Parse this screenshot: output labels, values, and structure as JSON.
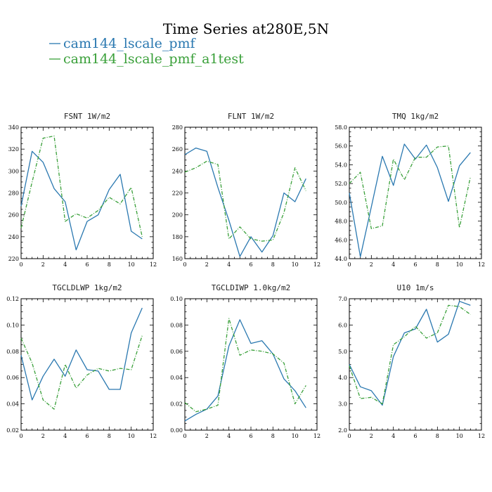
{
  "title": "Time Series at280E,5N",
  "legend": [
    {
      "label": "cam144_lscale_pmf",
      "color": "#2a78b0",
      "dash": "none"
    },
    {
      "label": "cam144_lscale_pmf_a1test",
      "color": "#3aa03a",
      "dash": "dashed"
    }
  ],
  "colors": {
    "series1": "#2a78b0",
    "series2": "#3aa03a"
  },
  "chart_data": [
    {
      "type": "line",
      "title": "FSNT  1W/m2",
      "x": [
        0,
        1,
        2,
        3,
        4,
        5,
        6,
        7,
        8,
        9,
        10,
        11
      ],
      "xlim": [
        0,
        12
      ],
      "xticks": [
        "0",
        "2",
        "4",
        "6",
        "8",
        "10",
        "12"
      ],
      "ylim": [
        220,
        340
      ],
      "yticks": [
        "220",
        "240",
        "260",
        "280",
        "300",
        "320",
        "340"
      ],
      "series": [
        {
          "name": "cam144_lscale_pmf",
          "values": [
            268,
            318,
            308,
            284,
            272,
            228,
            254,
            260,
            283,
            297,
            245,
            238
          ]
        },
        {
          "name": "cam144_lscale_pmf_a1test",
          "values": [
            248,
            290,
            330,
            332,
            254,
            261,
            257,
            264,
            276,
            270,
            285,
            240
          ]
        }
      ]
    },
    {
      "type": "line",
      "title": "FLNT  1W/m2",
      "x": [
        0,
        1,
        2,
        3,
        4,
        5,
        6,
        7,
        8,
        9,
        10,
        11
      ],
      "xlim": [
        0,
        12
      ],
      "xticks": [
        "0",
        "2",
        "4",
        "6",
        "8",
        "10",
        "12"
      ],
      "ylim": [
        160,
        280
      ],
      "yticks": [
        "160",
        "180",
        "200",
        "220",
        "240",
        "260",
        "280"
      ],
      "series": [
        {
          "name": "cam144_lscale_pmf",
          "values": [
            255,
            261,
            258,
            225,
            195,
            162,
            180,
            166,
            181,
            220,
            212,
            233
          ]
        },
        {
          "name": "cam144_lscale_pmf_a1test",
          "values": [
            239,
            243,
            249,
            246,
            178,
            189,
            178,
            176,
            177,
            202,
            243,
            222
          ]
        }
      ]
    },
    {
      "type": "line",
      "title": "TMQ  1kg/m2",
      "x": [
        0,
        1,
        2,
        3,
        4,
        5,
        6,
        7,
        8,
        9,
        10,
        11
      ],
      "xlim": [
        0,
        12
      ],
      "xticks": [
        "0",
        "2",
        "4",
        "6",
        "8",
        "10",
        "12"
      ],
      "ylim": [
        44.0,
        58.0
      ],
      "yticks": [
        "44.0",
        "46.0",
        "48.0",
        "50.0",
        "52.0",
        "54.0",
        "56.0",
        "58.0"
      ],
      "series": [
        {
          "name": "cam144_lscale_pmf",
          "values": [
            51.0,
            44.2,
            49.5,
            54.9,
            51.8,
            56.2,
            54.6,
            56.1,
            53.7,
            50.1,
            53.9,
            55.3
          ]
        },
        {
          "name": "cam144_lscale_pmf_a1test",
          "values": [
            52.0,
            53.2,
            47.2,
            47.5,
            54.6,
            52.4,
            54.8,
            54.8,
            55.9,
            56.0,
            47.3,
            52.7
          ]
        }
      ]
    },
    {
      "type": "line",
      "title": "TGCLDLWP  1kg/m2",
      "x": [
        0,
        1,
        2,
        3,
        4,
        5,
        6,
        7,
        8,
        9,
        10,
        11
      ],
      "xlim": [
        0,
        12
      ],
      "xticks": [
        "0",
        "2",
        "4",
        "6",
        "8",
        "10",
        "12"
      ],
      "ylim": [
        0.02,
        0.12
      ],
      "yticks": [
        "0.02",
        "0.04",
        "0.06",
        "0.08",
        "0.10",
        "0.12"
      ],
      "series": [
        {
          "name": "cam144_lscale_pmf",
          "values": [
            0.077,
            0.043,
            0.061,
            0.074,
            0.061,
            0.081,
            0.066,
            0.065,
            0.051,
            0.051,
            0.094,
            0.113
          ]
        },
        {
          "name": "cam144_lscale_pmf_a1test",
          "values": [
            0.09,
            0.071,
            0.043,
            0.036,
            0.07,
            0.052,
            0.062,
            0.067,
            0.065,
            0.067,
            0.066,
            0.092
          ]
        }
      ]
    },
    {
      "type": "line",
      "title": "TGCLDIWP  1.0kg/m2",
      "x": [
        0,
        1,
        2,
        3,
        4,
        5,
        6,
        7,
        8,
        9,
        10,
        11
      ],
      "xlim": [
        0,
        12
      ],
      "xticks": [
        "0",
        "2",
        "4",
        "6",
        "8",
        "10",
        "12"
      ],
      "ylim": [
        0.0,
        0.1
      ],
      "yticks": [
        "0.00",
        "0.02",
        "0.04",
        "0.06",
        "0.08",
        "0.10"
      ],
      "series": [
        {
          "name": "cam144_lscale_pmf",
          "values": [
            0.007,
            0.012,
            0.016,
            0.026,
            0.064,
            0.084,
            0.066,
            0.068,
            0.058,
            0.039,
            0.03,
            0.017
          ]
        },
        {
          "name": "cam144_lscale_pmf_a1test",
          "values": [
            0.021,
            0.014,
            0.016,
            0.019,
            0.085,
            0.057,
            0.061,
            0.06,
            0.058,
            0.051,
            0.02,
            0.034
          ]
        }
      ]
    },
    {
      "type": "line",
      "title": "U10  1m/s",
      "x": [
        0,
        1,
        2,
        3,
        4,
        5,
        6,
        7,
        8,
        9,
        10,
        11
      ],
      "xlim": [
        0,
        12
      ],
      "xticks": [
        "0",
        "2",
        "4",
        "6",
        "8",
        "10",
        "12"
      ],
      "ylim": [
        2.0,
        7.0
      ],
      "yticks": [
        "2.0",
        "3.0",
        "4.0",
        "5.0",
        "6.0",
        "7.0"
      ],
      "series": [
        {
          "name": "cam144_lscale_pmf",
          "values": [
            4.5,
            3.65,
            3.5,
            2.95,
            4.8,
            5.7,
            5.85,
            6.6,
            5.35,
            5.65,
            6.9,
            6.75
          ]
        },
        {
          "name": "cam144_lscale_pmf_a1test",
          "values": [
            4.45,
            3.2,
            3.25,
            3.0,
            5.25,
            5.55,
            5.95,
            5.5,
            5.7,
            6.75,
            6.7,
            6.4
          ]
        }
      ]
    }
  ]
}
